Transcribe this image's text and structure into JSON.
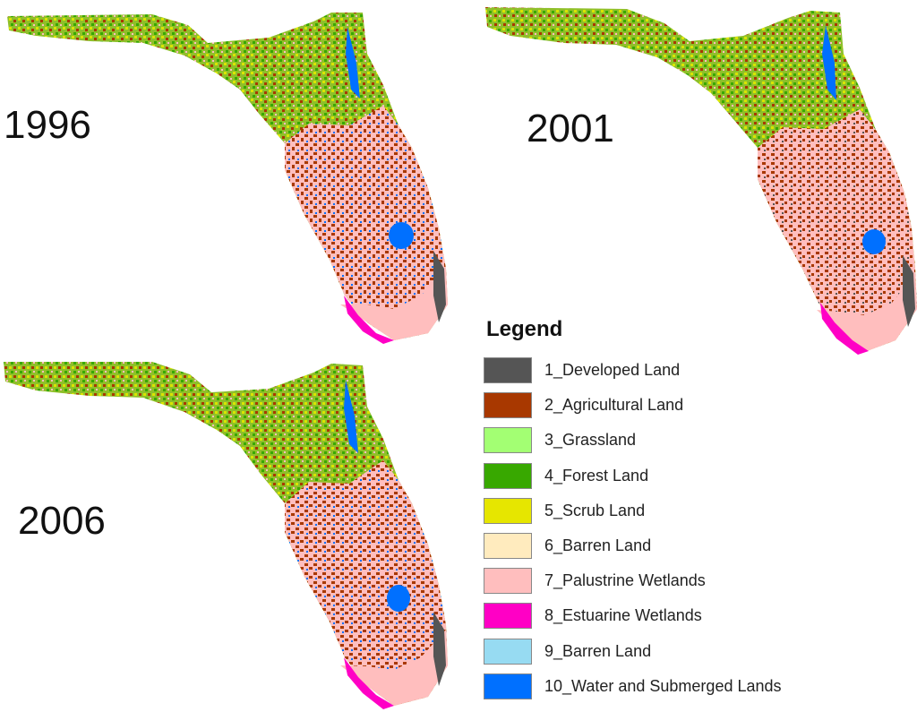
{
  "maps": [
    {
      "year": "1996"
    },
    {
      "year": "2001"
    },
    {
      "year": "2006"
    }
  ],
  "legend": {
    "title": "Legend",
    "items": [
      {
        "label": "1_Developed Land",
        "color": "#555555"
      },
      {
        "label": "2_Agricultural Land",
        "color": "#a83800"
      },
      {
        "label": "3_Grassland",
        "color": "#a3ff73"
      },
      {
        "label": "4_Forest Land",
        "color": "#38a800"
      },
      {
        "label": "5_Scrub Land",
        "color": "#e6e600"
      },
      {
        "label": "6_Barren Land",
        "color": "#ffebbe"
      },
      {
        "label": "7_Palustrine Wetlands",
        "color": "#ffbebe"
      },
      {
        "label": "8_Estuarine Wetlands",
        "color": "#ff00c5"
      },
      {
        "label": "9_Barren Land",
        "color": "#97dbf2"
      },
      {
        "label": "10_Water and Submerged Lands",
        "color": "#0070ff"
      }
    ]
  }
}
